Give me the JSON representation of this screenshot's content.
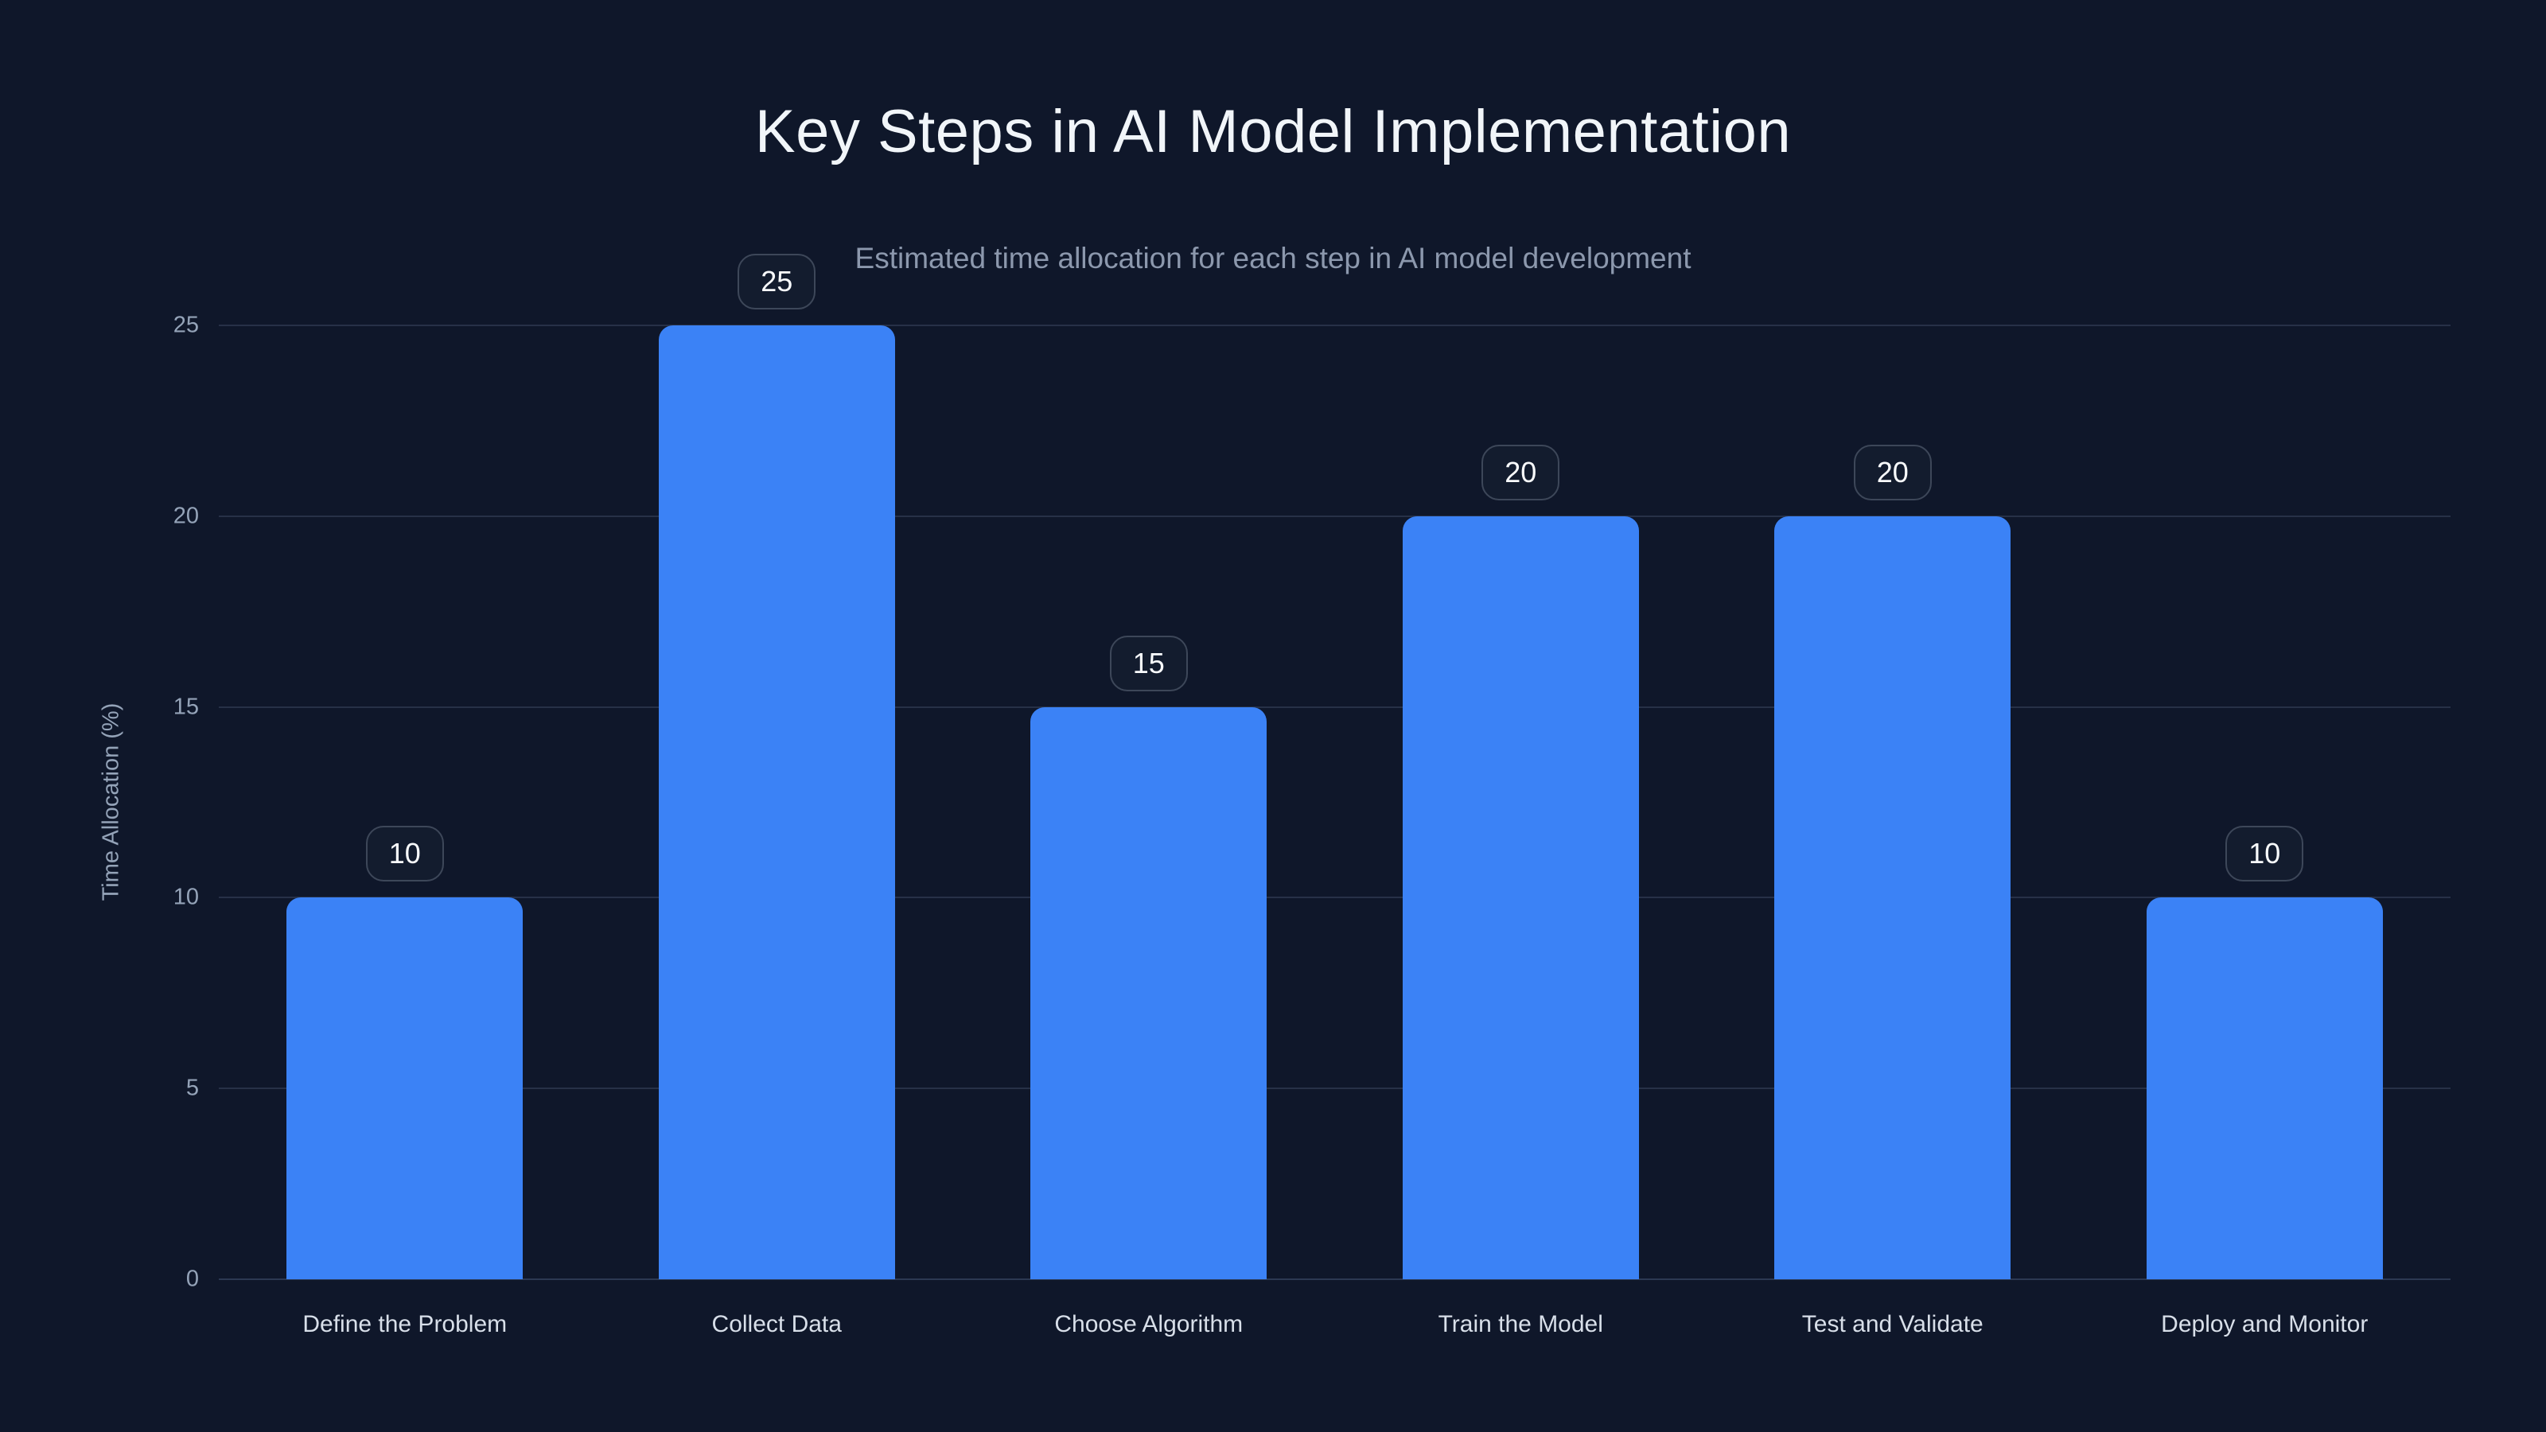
{
  "header": {
    "title": "Key Steps in AI Model Implementation",
    "subtitle": "Estimated time allocation for each step in AI model development"
  },
  "chart_data": {
    "type": "bar",
    "title": "Key Steps in AI Model Implementation",
    "subtitle": "Estimated time allocation for each step in AI model development",
    "categories": [
      "Define the Problem",
      "Collect Data",
      "Choose Algorithm",
      "Train the Model",
      "Test and Validate",
      "Deploy and Monitor"
    ],
    "values": [
      10,
      25,
      15,
      20,
      20,
      10
    ],
    "data_labels": [
      "10",
      "25",
      "15",
      "20",
      "20",
      "10"
    ],
    "xlabel": "",
    "ylabel": "Time Allocation (%)",
    "ylim": [
      0,
      25
    ],
    "yticks": [
      0,
      5,
      10,
      15,
      20,
      25
    ],
    "grid": true,
    "legend": false,
    "colors": {
      "background": "#0f172a",
      "bar": "#3b82f6",
      "gridline": "#273147",
      "title_text": "#f1f5f9",
      "subtitle_text": "#8c98ad",
      "tick_text": "#94a3b8",
      "category_text": "#d8dfe9",
      "badge_border": "#3d4759",
      "badge_text": "#f8fafc"
    }
  }
}
